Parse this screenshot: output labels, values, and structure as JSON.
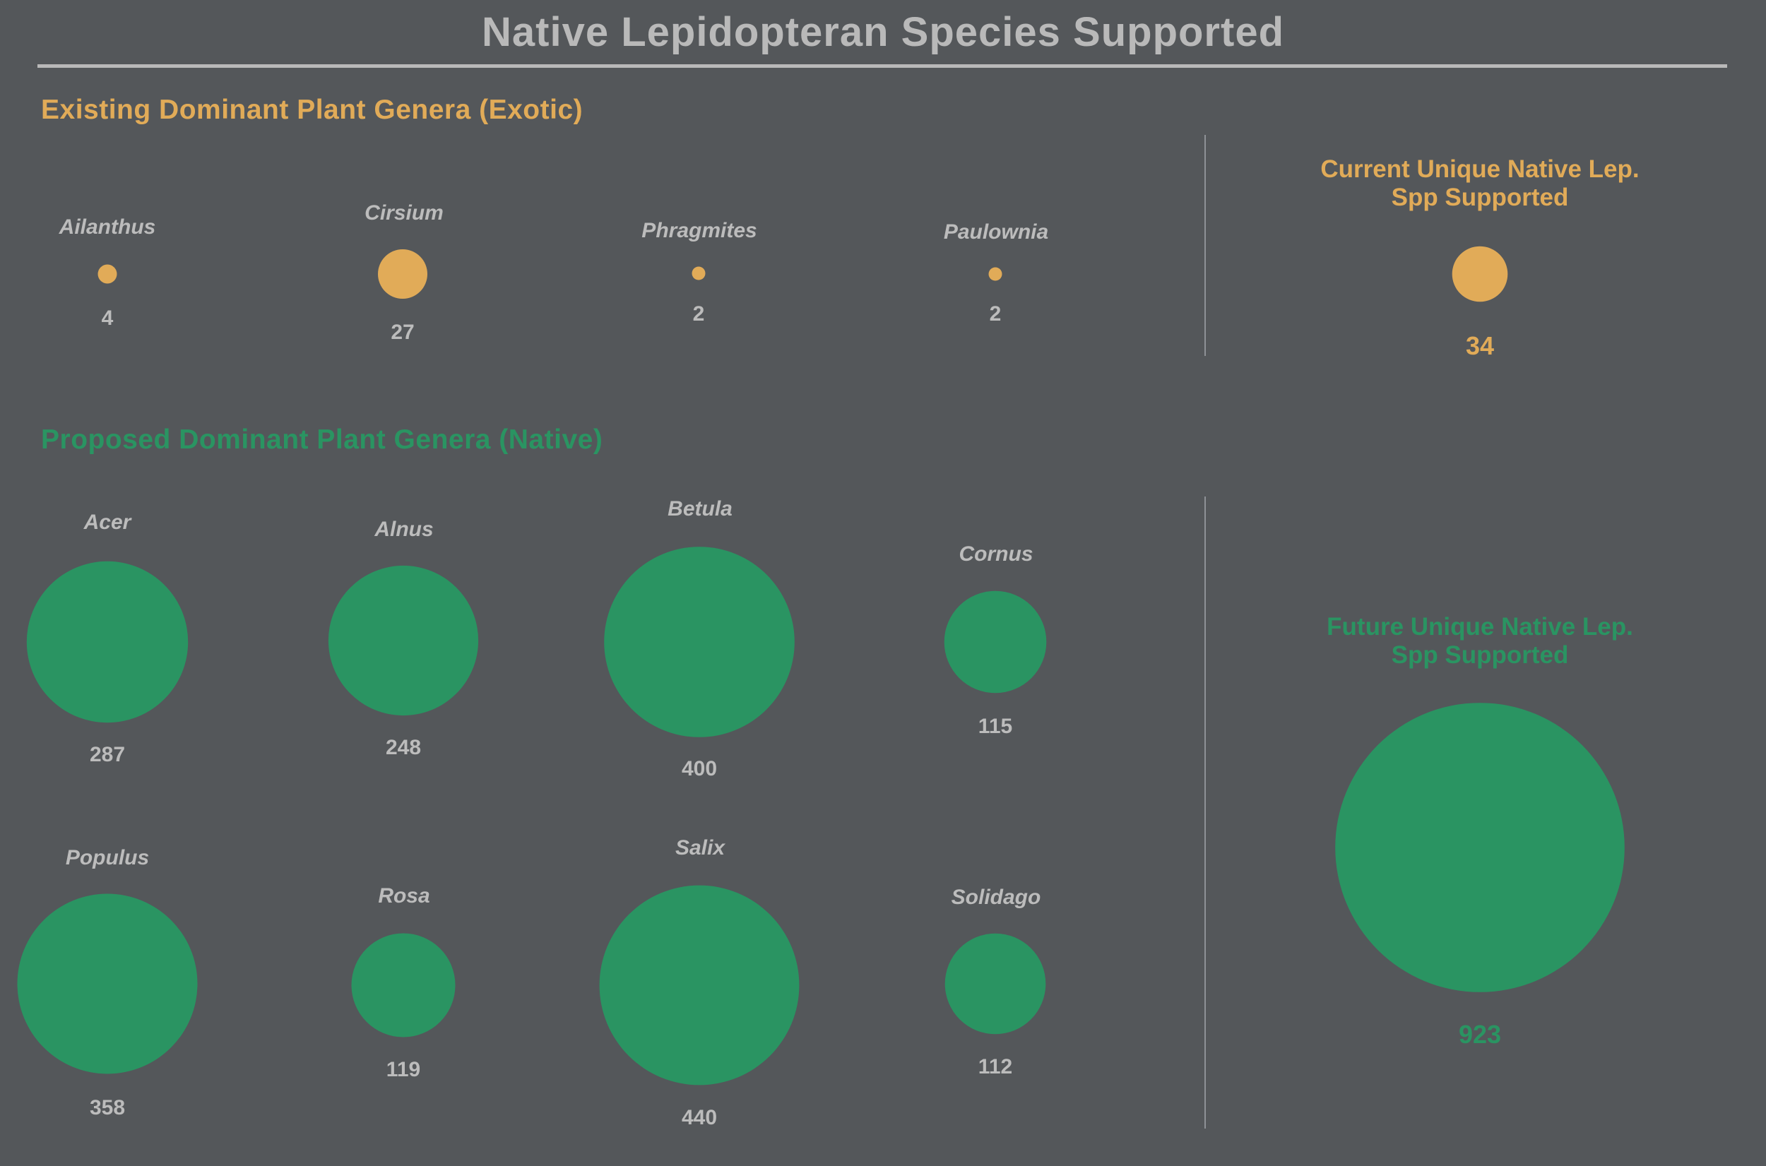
{
  "title": "Native Lepidopteran Species Supported",
  "colors": {
    "background": "#54575a",
    "exotic": "#e1ab58",
    "native": "#2a9462",
    "text": "#bcbcbc"
  },
  "chart_data": [
    {
      "type": "bubble",
      "heading": "Existing Dominant Plant Genera (Exotic)",
      "color": "#e1ab58",
      "categories": [
        "Ailanthus",
        "Cirsium",
        "Phragmites",
        "Paulownia"
      ],
      "values": [
        4,
        27,
        2,
        2
      ],
      "total": {
        "label_line1": "Current Unique Native Lep.",
        "label_line2": "Spp Supported",
        "value": 34
      }
    },
    {
      "type": "bubble",
      "heading": "Proposed Dominant Plant Genera (Native)",
      "color": "#2a9462",
      "categories": [
        "Acer",
        "Alnus",
        "Betula",
        "Cornus",
        "Populus",
        "Rosa",
        "Salix",
        "Solidago"
      ],
      "values": [
        287,
        248,
        400,
        115,
        358,
        119,
        440,
        112
      ],
      "total": {
        "label_line1": "Future Unique Native Lep.",
        "label_line2": "Spp Supported",
        "value": 923
      }
    }
  ]
}
